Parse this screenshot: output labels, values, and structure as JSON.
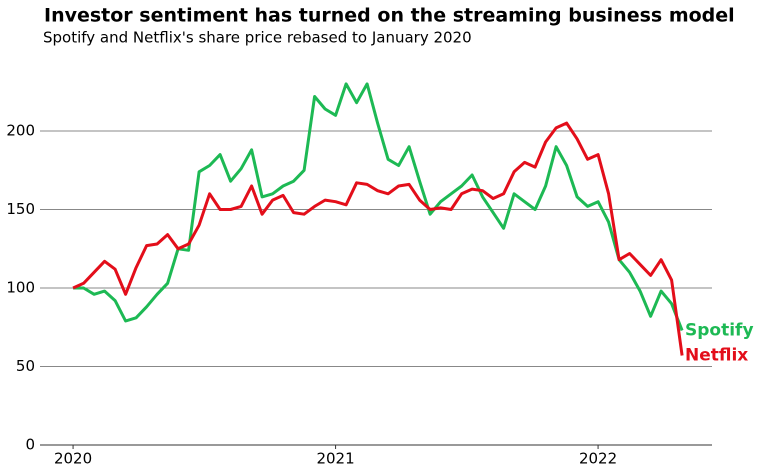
{
  "chart_data": {
    "type": "line",
    "title": "Investor sentiment has turned on the streaming business model",
    "subtitle": "Spotify and Netflix's share price rebased to January 2020",
    "x": [
      2020.0,
      2020.04,
      2020.08,
      2020.12,
      2020.16,
      2020.2,
      2020.24,
      2020.28,
      2020.32,
      2020.36,
      2020.4,
      2020.44,
      2020.48,
      2020.52,
      2020.56,
      2020.6,
      2020.64,
      2020.68,
      2020.72,
      2020.76,
      2020.8,
      2020.84,
      2020.88,
      2020.92,
      2020.96,
      2021.0,
      2021.04,
      2021.08,
      2021.12,
      2021.16,
      2021.2,
      2021.24,
      2021.28,
      2021.32,
      2021.36,
      2021.4,
      2021.44,
      2021.48,
      2021.52,
      2021.56,
      2021.6,
      2021.64,
      2021.68,
      2021.72,
      2021.76,
      2021.8,
      2021.84,
      2021.88,
      2021.92,
      2021.96,
      2022.0,
      2022.04,
      2022.08,
      2022.12,
      2022.16,
      2022.2,
      2022.24,
      2022.28,
      2022.32
    ],
    "series": [
      {
        "name": "Spotify",
        "color": "#1db954",
        "values": [
          100,
          100,
          96,
          98,
          92,
          79,
          81,
          88,
          96,
          103,
          125,
          124,
          174,
          178,
          185,
          168,
          176,
          188,
          158,
          160,
          165,
          168,
          175,
          222,
          214,
          210,
          230,
          218,
          230,
          205,
          182,
          178,
          190,
          168,
          147,
          155,
          160,
          165,
          172,
          158,
          148,
          138,
          160,
          155,
          150,
          165,
          190,
          178,
          158,
          152,
          155,
          142,
          118,
          110,
          98,
          82,
          98,
          90,
          73
        ]
      },
      {
        "name": "Netflix",
        "color": "#e30e1a",
        "values": [
          100,
          103,
          110,
          117,
          112,
          96,
          113,
          127,
          128,
          134,
          125,
          128,
          140,
          160,
          150,
          150,
          152,
          165,
          147,
          156,
          159,
          148,
          147,
          152,
          156,
          155,
          153,
          167,
          166,
          162,
          160,
          165,
          166,
          156,
          150,
          151,
          150,
          160,
          163,
          162,
          157,
          160,
          174,
          180,
          177,
          193,
          202,
          205,
          195,
          182,
          185,
          160,
          118,
          122,
          115,
          108,
          118,
          105,
          57
        ]
      }
    ],
    "xlim": [
      2019.874,
      2022.434
    ],
    "xticks": [
      2020,
      2021,
      2022
    ],
    "ylim": [
      0,
      245
    ],
    "yticks": [
      0,
      50,
      100,
      150,
      200
    ],
    "grid": true
  }
}
